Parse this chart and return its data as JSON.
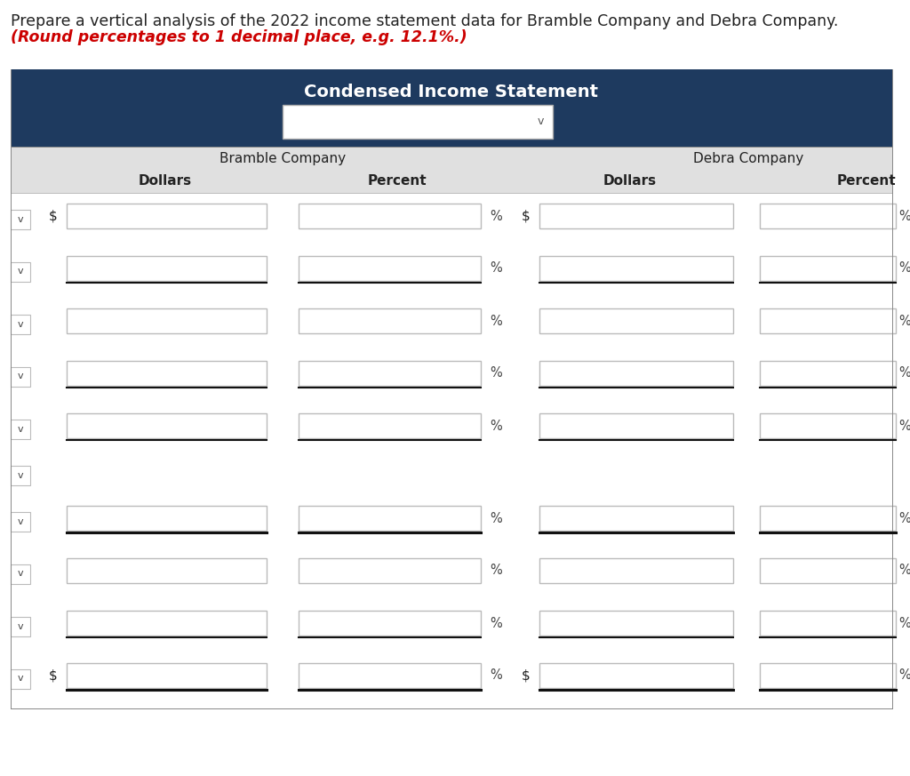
{
  "title_line1": "Prepare a vertical analysis of the 2022 income statement data for Bramble Company and Debra Company.",
  "title_line2": "(Round percentages to 1 decimal place, e.g. 12.1%.)",
  "header_title": "Condensed Income Statement",
  "header_bg_color": "#1e3a5f",
  "header_text_color": "#ffffff",
  "subheader_bg_color": "#e0e0e0",
  "bramble_label": "Bramble Company",
  "debra_label": "Debra Company",
  "col_headers": [
    "Dollars",
    "Percent",
    "Dollars",
    "Percent"
  ],
  "input_box_color": "#ffffff",
  "input_box_border": "#bbbbbb",
  "bg_color": "#ffffff",
  "normal_text_color": "#222222",
  "red_text_color": "#cc0000",
  "rows_with_dollar_sign_b": [
    0,
    9
  ],
  "rows_with_dollar_sign_d": [
    0,
    9
  ],
  "rows_with_percent_b": [
    0,
    1,
    2,
    3,
    4,
    6,
    7,
    8,
    9
  ],
  "rows_with_percent_d": [
    0,
    1,
    2,
    3,
    4,
    6,
    7,
    8,
    9
  ],
  "rows_with_boxes": [
    0,
    1,
    2,
    3,
    4,
    6,
    7,
    8,
    9
  ],
  "rows_with_underline": [
    1,
    3,
    4,
    6,
    8,
    9
  ],
  "rows_with_bold_underline": [
    6,
    9
  ],
  "empty_rows": [
    5
  ],
  "dropdown_arrow": "∨",
  "title_fontsize": 12.5,
  "header_fontsize": 14,
  "label_fontsize": 11,
  "col_header_fontsize": 11
}
